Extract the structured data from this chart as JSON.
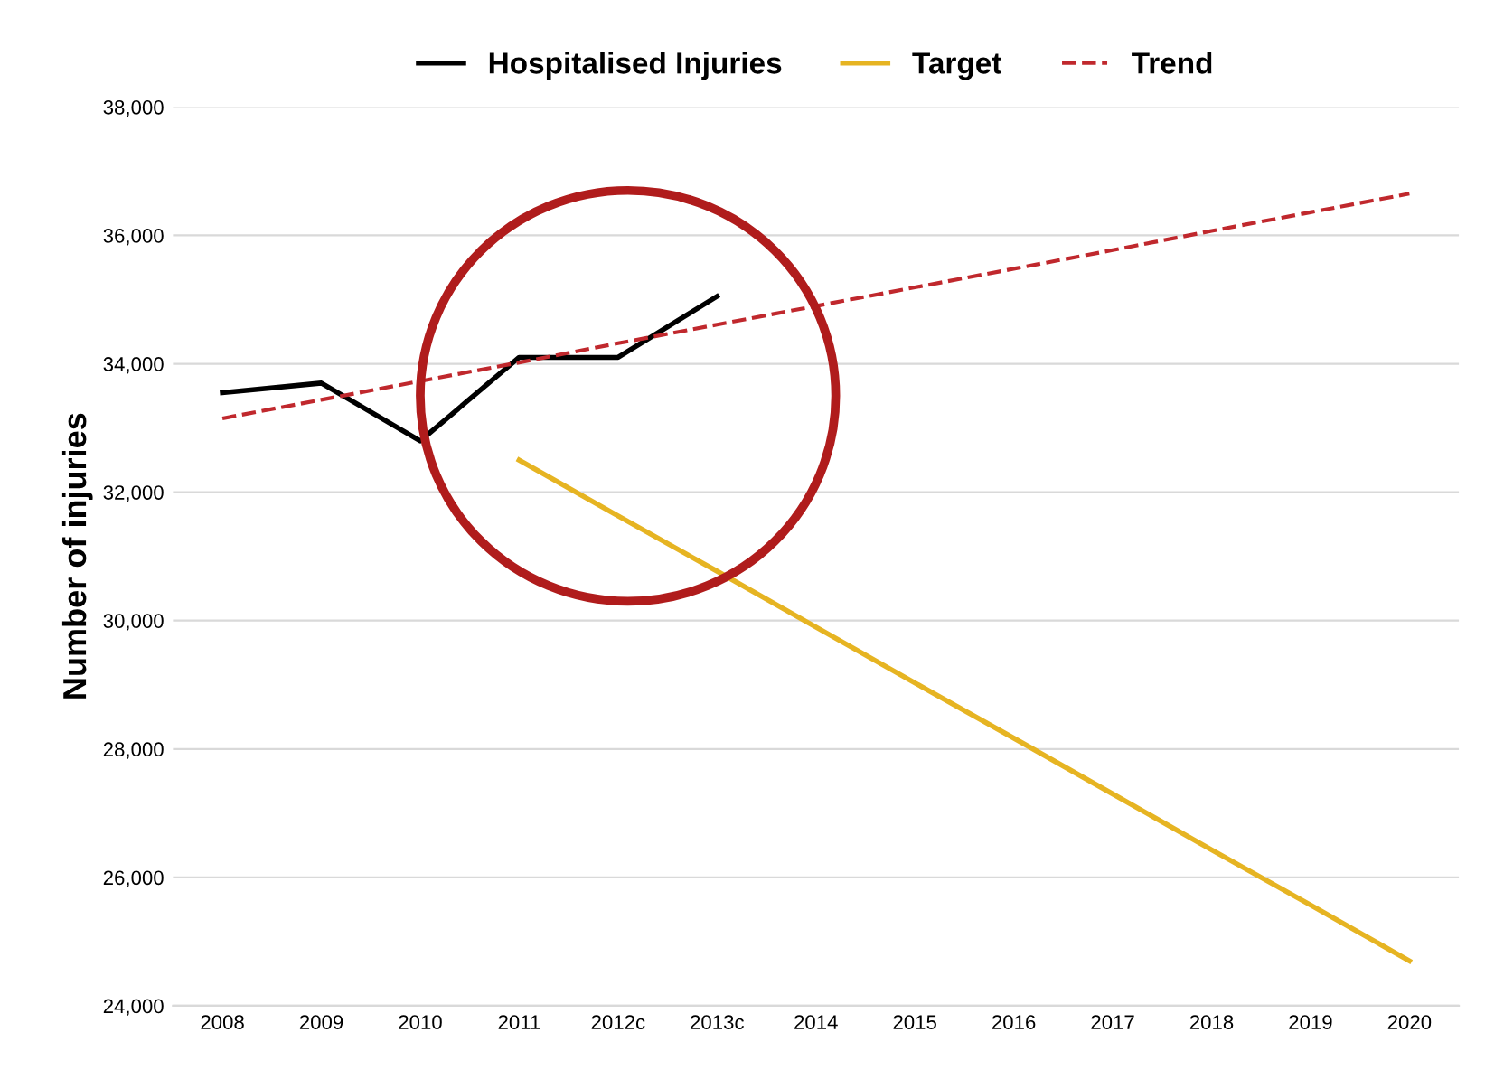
{
  "chart_data": {
    "type": "line",
    "ylabel": "Number of injuries",
    "categories": [
      "2008",
      "2009",
      "2010",
      "2011",
      "2012c",
      "2013c",
      "2014",
      "2015",
      "2016",
      "2017",
      "2018",
      "2019",
      "2020"
    ],
    "series": [
      {
        "name": "Hospitalised Injuries",
        "color": "#000000",
        "values": [
          33550,
          33700,
          32800,
          34100,
          34100,
          35050,
          null,
          null,
          null,
          null,
          null,
          null,
          null
        ]
      },
      {
        "name": "Target",
        "color": "#e6b422",
        "values": [
          null,
          null,
          null,
          32500,
          31630,
          30770,
          29900,
          29030,
          28170,
          27300,
          26430,
          25570,
          24700
        ]
      },
      {
        "name": "Trend",
        "color": "#c0282d",
        "line_style": "dashed",
        "values": [
          33150,
          33440,
          33730,
          34020,
          34320,
          34610,
          34900,
          35190,
          35480,
          35770,
          36070,
          36360,
          36650
        ]
      }
    ],
    "ylim": [
      24000,
      38000
    ],
    "yticks": [
      {
        "value": 24000,
        "label": "24,000"
      },
      {
        "value": 26000,
        "label": "26,000"
      },
      {
        "value": 28000,
        "label": "28,000"
      },
      {
        "value": 30000,
        "label": "30,000"
      },
      {
        "value": 32000,
        "label": "32,000"
      },
      {
        "value": 34000,
        "label": "34,000"
      },
      {
        "value": 36000,
        "label": "36,000"
      },
      {
        "value": 38000,
        "label": "38,000"
      }
    ],
    "grid": "y",
    "legend": "top"
  }
}
